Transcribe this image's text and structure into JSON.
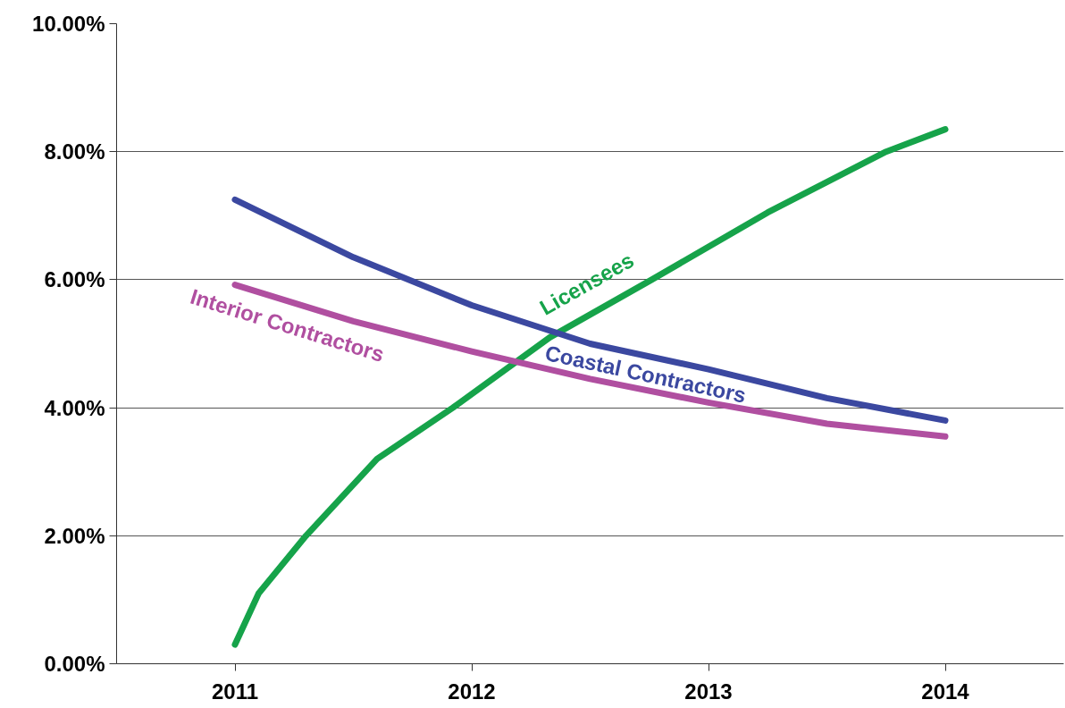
{
  "chart_data": {
    "type": "line",
    "ylim": [
      0,
      10
    ],
    "yticks": [
      {
        "value": 0,
        "label": "0.00%"
      },
      {
        "value": 2,
        "label": "2.00%"
      },
      {
        "value": 4,
        "label": "4.00%"
      },
      {
        "value": 6,
        "label": "6.00%"
      },
      {
        "value": 8,
        "label": "8.00%"
      },
      {
        "value": 10,
        "label": "10.00%"
      }
    ],
    "xlim": [
      2010.5,
      2014.5
    ],
    "xticks": [
      2011,
      2012,
      2013,
      2014
    ],
    "grid": "y",
    "marker": "none",
    "line_style": "solid",
    "series": [
      {
        "name": "Licensees",
        "color": "#16a34a",
        "x": [
          2011,
          2011.1,
          2011.3,
          2011.6,
          2011.92,
          2012.33,
          2012.76,
          2013.25,
          2013.75,
          2014
        ],
        "values": [
          0.3,
          1.1,
          2.0,
          3.2,
          4.0,
          5.1,
          6.0,
          7.05,
          8.0,
          8.35
        ]
      },
      {
        "name": "Coastal Contractors",
        "color": "#3b48a0",
        "x": [
          2011,
          2011.5,
          2012,
          2012.5,
          2013,
          2013.5,
          2014
        ],
        "values": [
          7.25,
          6.35,
          5.6,
          5.0,
          4.6,
          4.15,
          3.8
        ]
      },
      {
        "name": "Interior Contractors",
        "color": "#b04fa0",
        "x": [
          2011,
          2011.5,
          2012,
          2012.5,
          2013,
          2013.5,
          2014
        ],
        "values": [
          5.92,
          5.35,
          4.88,
          4.45,
          4.08,
          3.75,
          3.55
        ]
      }
    ]
  }
}
